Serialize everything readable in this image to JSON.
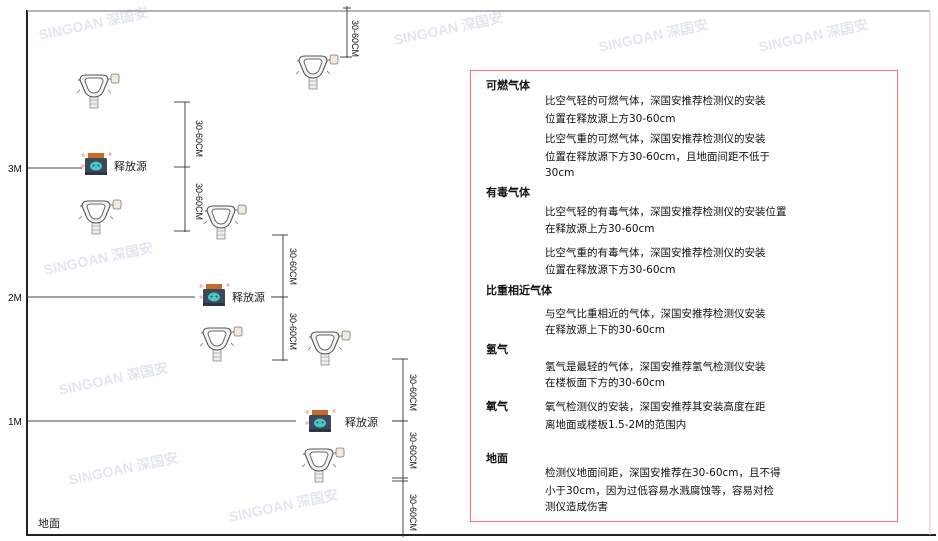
{
  "watermark": "SINGOAN 深国安",
  "levels": {
    "l3": "3M",
    "l2": "2M",
    "l1": "1M",
    "ground": "地面"
  },
  "source_label": "释放源",
  "dimension_label": "30-60CM",
  "colors": {
    "box_border": "#e8808a",
    "frame": "#222222",
    "source_body": "#3b4a5a",
    "source_cap": "#c9692a",
    "source_face": "#49c6c6"
  },
  "info": {
    "combustible": {
      "title": "可燃气体",
      "light": [
        "比空气轻的可燃气体，深国安推荐检测仪的安装",
        "位置在释放源上方30-60cm"
      ],
      "heavy": [
        "比空气重的可燃气体，深国安推荐检测仪的安装",
        "位置在释放源下方30-60cm，且地面间距不低于",
        "30cm"
      ]
    },
    "toxic": {
      "title": "有毒气体",
      "light": [
        "比空气轻的有毒气体，深国安推荐检测仪的安装位置",
        "在释放源上方30-60cm"
      ],
      "heavy": [
        "比空气重的有毒气体，深国安推荐检测仪的安装",
        "位置在释放源下方30-60cm"
      ]
    },
    "similar": {
      "title": "比重相近气体",
      "lines": [
        "与空气比重相近的气体，深国安推荐检测仪安装",
        "在释放源上下的30-60cm"
      ]
    },
    "hydrogen": {
      "title": "氢气",
      "lines": [
        "氢气是最轻的气体，深国安推荐氢气检测仪安装",
        "在楼板面下方的30-60cm"
      ]
    },
    "oxygen": {
      "title": "氧气",
      "lines": [
        "氧气检测仪的安装，深国安推荐其安装高度在距",
        "离地面或楼板1.5-2M的范围内"
      ]
    },
    "ground": {
      "title": "地面",
      "lines": [
        "检测仪地面间距，深国安推荐在30-60cm，且不得",
        "小于30cm，因为过低容易水溅腐蚀等，容易对检",
        "测仪造成伤害"
      ]
    }
  }
}
